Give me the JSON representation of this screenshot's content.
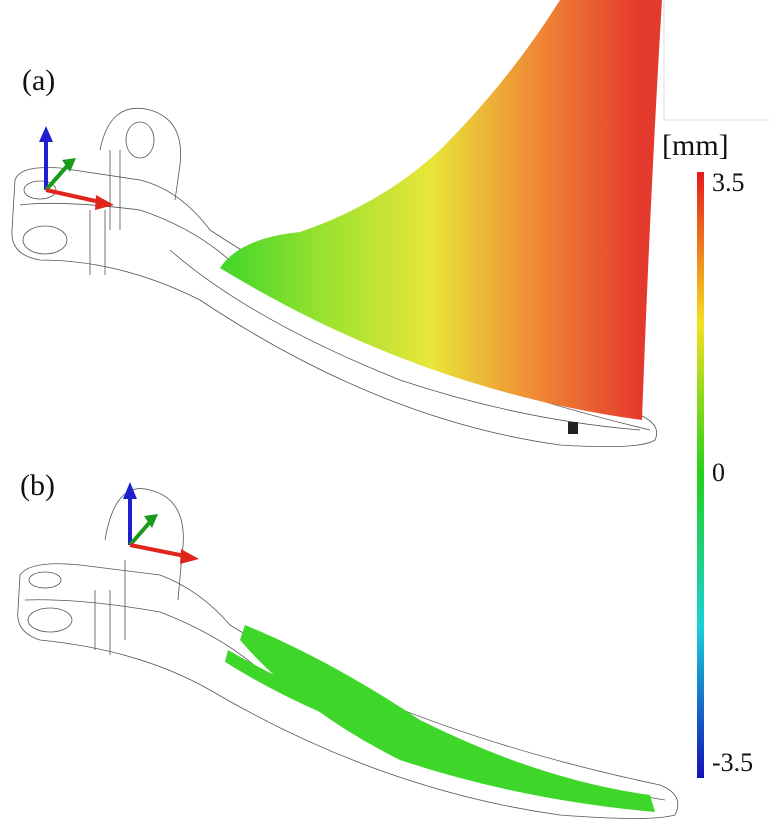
{
  "panels": {
    "a": {
      "label": "(a)"
    },
    "b": {
      "label": "(b)"
    }
  },
  "colorbar": {
    "unit": "[mm]",
    "range": [
      -3.5,
      3.5
    ],
    "ticks": [
      3.5,
      0,
      -3.5
    ]
  }
}
